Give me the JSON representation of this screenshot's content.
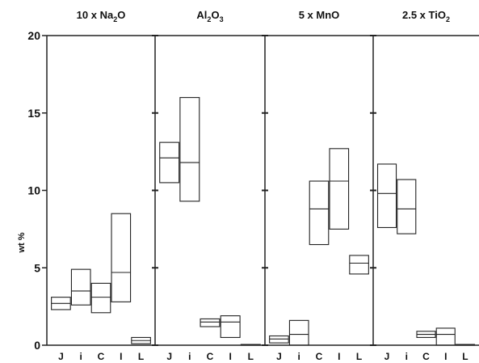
{
  "chart_data": {
    "type": "boxplot",
    "ylabel": "wt %",
    "ylim": [
      0,
      20
    ],
    "yticks": [
      "0",
      "5",
      "10",
      "15",
      "20"
    ],
    "categories": [
      "J",
      "i",
      "C",
      "I",
      "L"
    ],
    "grid": false,
    "legend": "none",
    "stroke_color": "#222222",
    "panels": [
      {
        "title": {
          "prefix": "10 x Na",
          "sub": "2",
          "suffix": "O"
        },
        "boxes": [
          {
            "category": "J",
            "low": 2.3,
            "median": 2.7,
            "high": 3.1
          },
          {
            "category": "i",
            "low": 2.6,
            "median": 3.5,
            "high": 4.9
          },
          {
            "category": "C",
            "low": 2.1,
            "median": 3.1,
            "high": 4.0
          },
          {
            "category": "I",
            "low": 2.8,
            "median": 4.7,
            "high": 8.5
          },
          {
            "category": "L",
            "low": 0.1,
            "median": 0.3,
            "high": 0.5
          }
        ]
      },
      {
        "title": {
          "prefix": "Al",
          "sub": "2",
          "suffix": "O",
          "sub2": "3"
        },
        "boxes": [
          {
            "category": "J",
            "low": 10.5,
            "median": 12.1,
            "high": 13.1
          },
          {
            "category": "i",
            "low": 9.3,
            "median": 11.8,
            "high": 16.0
          },
          {
            "category": "C",
            "low": 1.2,
            "median": 1.5,
            "high": 1.7
          },
          {
            "category": "I",
            "low": 0.5,
            "median": 1.5,
            "high": 1.9
          },
          {
            "category": "L",
            "low": 0.0,
            "median": 0.0,
            "high": 0.05
          }
        ]
      },
      {
        "title": {
          "prefix": "5 x MnO",
          "sub": "",
          "suffix": ""
        },
        "boxes": [
          {
            "category": "J",
            "low": 0.15,
            "median": 0.4,
            "high": 0.6
          },
          {
            "category": "i",
            "low": 0.0,
            "median": 0.7,
            "high": 1.6
          },
          {
            "category": "C",
            "low": 6.5,
            "median": 8.8,
            "high": 10.6
          },
          {
            "category": "I",
            "low": 7.5,
            "median": 10.6,
            "high": 12.7
          },
          {
            "category": "L",
            "low": 4.6,
            "median": 5.3,
            "high": 5.8
          }
        ]
      },
      {
        "title": {
          "prefix": "2.5 x TiO",
          "sub": "2",
          "suffix": ""
        },
        "boxes": [
          {
            "category": "J",
            "low": 7.6,
            "median": 9.8,
            "high": 11.7
          },
          {
            "category": "i",
            "low": 7.2,
            "median": 8.8,
            "high": 10.7
          },
          {
            "category": "C",
            "low": 0.5,
            "median": 0.7,
            "high": 0.9
          },
          {
            "category": "I",
            "low": 0.0,
            "median": 0.7,
            "high": 1.1
          },
          {
            "category": "L",
            "low": 0.0,
            "median": 0.0,
            "high": 0.05
          }
        ]
      }
    ]
  }
}
